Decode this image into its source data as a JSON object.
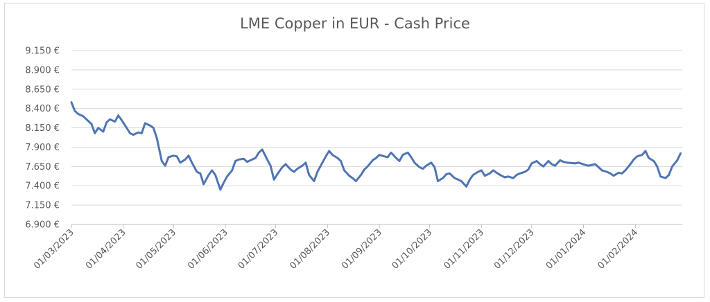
{
  "chart_data": {
    "type": "line",
    "title": "LME Copper in EUR - Cash Price",
    "xlabel": "",
    "ylabel": "",
    "ylim": [
      6900,
      9150
    ],
    "y_ticks": [
      "6.900 €",
      "7.150 €",
      "7.400 €",
      "7.650 €",
      "7.900 €",
      "8.150 €",
      "8.400 €",
      "8.650 €",
      "8.900 €",
      "9.150 €"
    ],
    "x_ticks": [
      "01/03/2023",
      "01/04/2023",
      "01/05/2023",
      "01/06/2023",
      "01/07/2023",
      "01/08/2023",
      "01/09/2023",
      "01/10/2023",
      "01/11/2023",
      "01/12/2023",
      "01/01/2024",
      "01/02/2024"
    ],
    "grid": true,
    "legend": "none",
    "colors": {
      "line": "#4f75b3",
      "grid": "#d9d9d9",
      "text": "#595959"
    },
    "series": [
      {
        "x": [
          "2023-03-01",
          "2023-03-03",
          "2023-03-05",
          "2023-03-08",
          "2023-03-10",
          "2023-03-13",
          "2023-03-15",
          "2023-03-17",
          "2023-03-20",
          "2023-03-22",
          "2023-03-24",
          "2023-03-27",
          "2023-03-29",
          "2023-03-31",
          "2023-04-03",
          "2023-04-05",
          "2023-04-07",
          "2023-04-10",
          "2023-04-12",
          "2023-04-14",
          "2023-04-17",
          "2023-04-19",
          "2023-04-21",
          "2023-04-24",
          "2023-04-26",
          "2023-04-28",
          "2023-05-01",
          "2023-05-03",
          "2023-05-05",
          "2023-05-08",
          "2023-05-10",
          "2023-05-12",
          "2023-05-15",
          "2023-05-17",
          "2023-05-19",
          "2023-05-22",
          "2023-05-24",
          "2023-05-26",
          "2023-05-29",
          "2023-05-31",
          "2023-06-02",
          "2023-06-05",
          "2023-06-07",
          "2023-06-09",
          "2023-06-12",
          "2023-06-14",
          "2023-06-16",
          "2023-06-19",
          "2023-06-21",
          "2023-06-23",
          "2023-06-26",
          "2023-06-28",
          "2023-06-30",
          "2023-07-03",
          "2023-07-05",
          "2023-07-07",
          "2023-07-10",
          "2023-07-12",
          "2023-07-14",
          "2023-07-17",
          "2023-07-19",
          "2023-07-21",
          "2023-07-24",
          "2023-07-26",
          "2023-07-28",
          "2023-07-31",
          "2023-08-02",
          "2023-08-04",
          "2023-08-07",
          "2023-08-09",
          "2023-08-11",
          "2023-08-14",
          "2023-08-16",
          "2023-08-18",
          "2023-08-21",
          "2023-08-23",
          "2023-08-25",
          "2023-08-28",
          "2023-08-30",
          "2023-09-01",
          "2023-09-04",
          "2023-09-06",
          "2023-09-08",
          "2023-09-11",
          "2023-09-13",
          "2023-09-15",
          "2023-09-18",
          "2023-09-20",
          "2023-09-22",
          "2023-09-25",
          "2023-09-27",
          "2023-09-29",
          "2023-10-02",
          "2023-10-04",
          "2023-10-06",
          "2023-10-09",
          "2023-10-11",
          "2023-10-13",
          "2023-10-16",
          "2023-10-18",
          "2023-10-20",
          "2023-10-23",
          "2023-10-25",
          "2023-10-27",
          "2023-10-30",
          "2023-11-01",
          "2023-11-03",
          "2023-11-06",
          "2023-11-08",
          "2023-11-10",
          "2023-11-13",
          "2023-11-15",
          "2023-11-17",
          "2023-11-20",
          "2023-11-22",
          "2023-11-24",
          "2023-11-27",
          "2023-11-29",
          "2023-12-01",
          "2023-12-04",
          "2023-12-06",
          "2023-12-08",
          "2023-12-11",
          "2023-12-13",
          "2023-12-15",
          "2023-12-18",
          "2023-12-20",
          "2023-12-22",
          "2023-12-27",
          "2023-12-29",
          "2024-01-02",
          "2024-01-04",
          "2024-01-08",
          "2024-01-10",
          "2024-01-12",
          "2024-01-15",
          "2024-01-17",
          "2024-01-19",
          "2024-01-22",
          "2024-01-24",
          "2024-01-26",
          "2024-01-29",
          "2024-01-31",
          "2024-02-02",
          "2024-02-05",
          "2024-02-07",
          "2024-02-09",
          "2024-02-12",
          "2024-02-14",
          "2024-02-16",
          "2024-02-19",
          "2024-02-21",
          "2024-02-23",
          "2024-02-26",
          "2024-02-28"
        ],
        "y": [
          8480,
          8370,
          8330,
          8300,
          8260,
          8200,
          8080,
          8150,
          8100,
          8220,
          8260,
          8230,
          8310,
          8250,
          8150,
          8080,
          8060,
          8090,
          8080,
          8210,
          8180,
          8150,
          8020,
          7720,
          7660,
          7770,
          7790,
          7780,
          7700,
          7740,
          7790,
          7700,
          7580,
          7560,
          7420,
          7540,
          7600,
          7540,
          7350,
          7440,
          7520,
          7600,
          7720,
          7740,
          7750,
          7710,
          7730,
          7760,
          7830,
          7870,
          7740,
          7660,
          7480,
          7580,
          7640,
          7680,
          7610,
          7580,
          7620,
          7660,
          7700,
          7540,
          7460,
          7580,
          7660,
          7780,
          7850,
          7800,
          7760,
          7720,
          7600,
          7530,
          7500,
          7460,
          7540,
          7610,
          7650,
          7730,
          7760,
          7800,
          7780,
          7770,
          7830,
          7760,
          7720,
          7800,
          7830,
          7770,
          7700,
          7640,
          7620,
          7660,
          7700,
          7640,
          7460,
          7500,
          7550,
          7560,
          7500,
          7480,
          7460,
          7390,
          7480,
          7540,
          7580,
          7600,
          7530,
          7560,
          7600,
          7570,
          7530,
          7510,
          7520,
          7500,
          7540,
          7560,
          7580,
          7610,
          7690,
          7720,
          7680,
          7650,
          7720,
          7680,
          7660,
          7730,
          7710,
          7700,
          7690,
          7700,
          7670,
          7660,
          7680,
          7640,
          7600,
          7580,
          7560,
          7530,
          7570,
          7560,
          7600,
          7680,
          7740,
          7780,
          7800,
          7850,
          7760,
          7720,
          7650,
          7520,
          7500,
          7540,
          7650,
          7730,
          7820
        ]
      }
    ]
  }
}
